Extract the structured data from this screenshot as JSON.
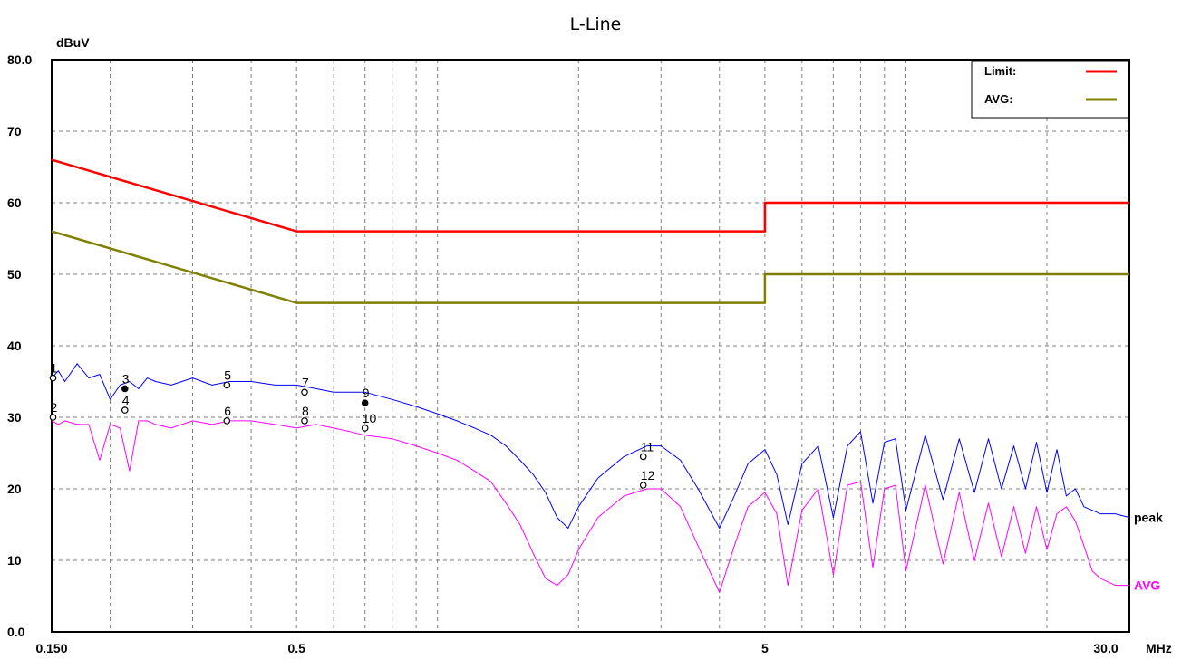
{
  "chart_data": {
    "type": "line",
    "title": "L-Line",
    "ylabel": "dBuV",
    "xlabel": "MHz",
    "xscale": "log",
    "xlim": [
      0.15,
      30
    ],
    "ylim": [
      0,
      80
    ],
    "grid": true,
    "y_ticks": [
      {
        "value": 80,
        "label": "80.0"
      },
      {
        "value": 70,
        "label": "70"
      },
      {
        "value": 60,
        "label": "60"
      },
      {
        "value": 50,
        "label": "50"
      },
      {
        "value": 40,
        "label": "40"
      },
      {
        "value": 30,
        "label": "30"
      },
      {
        "value": 20,
        "label": "20"
      },
      {
        "value": 10,
        "label": "10"
      },
      {
        "value": 0,
        "label": "0.0"
      }
    ],
    "x_ticks": [
      {
        "value": 0.15,
        "label": "0.150"
      },
      {
        "value": 0.5,
        "label": "0.5"
      },
      {
        "value": 5,
        "label": "5"
      },
      {
        "value": 30,
        "label": "30.0"
      }
    ],
    "legend": {
      "placement": "top-right",
      "items": [
        {
          "label": "Limit:",
          "color": "#ff0000"
        },
        {
          "label": "AVG:",
          "color": "#808000"
        }
      ]
    },
    "series": [
      {
        "name": "Limit:",
        "color": "#ff0000",
        "x": [
          0.15,
          0.5,
          5,
          5,
          30
        ],
        "y": [
          66,
          56,
          56,
          60,
          60
        ]
      },
      {
        "name": "AVG:",
        "color": "#808000",
        "x": [
          0.15,
          0.5,
          5,
          5,
          30
        ],
        "y": [
          56,
          46,
          46,
          50,
          50
        ]
      },
      {
        "name": "peak",
        "color": "#0000ff",
        "x": [
          0.15,
          0.155,
          0.16,
          0.17,
          0.18,
          0.19,
          0.2,
          0.21,
          0.22,
          0.23,
          0.24,
          0.25,
          0.27,
          0.3,
          0.33,
          0.36,
          0.4,
          0.45,
          0.5,
          0.55,
          0.6,
          0.65,
          0.7,
          0.8,
          0.9,
          1.0,
          1.1,
          1.2,
          1.3,
          1.4,
          1.5,
          1.6,
          1.7,
          1.8,
          1.9,
          2.0,
          2.2,
          2.5,
          2.8,
          3.0,
          3.3,
          3.6,
          4.0,
          4.3,
          4.6,
          5.0,
          5.3,
          5.6,
          6.0,
          6.5,
          7.0,
          7.5,
          8.0,
          8.5,
          9.0,
          9.5,
          10.0,
          11.0,
          12.0,
          13.0,
          14.0,
          15.0,
          16.0,
          17.0,
          18.0,
          19.0,
          20.0,
          21.0,
          22.0,
          23.0,
          24.0,
          25.0,
          26.0,
          28.0,
          30.0
        ],
        "y": [
          35.5,
          36.5,
          35.0,
          37.5,
          35.5,
          36.0,
          32.5,
          34.5,
          35.0,
          34.0,
          35.5,
          35.0,
          34.5,
          35.5,
          34.5,
          35.0,
          35.0,
          34.5,
          34.5,
          34.0,
          33.5,
          33.5,
          33.5,
          32.5,
          31.5,
          30.5,
          29.5,
          28.5,
          27.5,
          26.0,
          24.0,
          22.0,
          19.5,
          16.0,
          14.5,
          17.5,
          21.5,
          24.5,
          26.0,
          26.0,
          24.0,
          20.0,
          14.5,
          19.0,
          23.5,
          25.5,
          22.0,
          15.0,
          23.5,
          26.0,
          16.0,
          26.0,
          28.0,
          18.0,
          26.5,
          27.0,
          17.0,
          27.5,
          18.5,
          27.0,
          19.5,
          27.0,
          20.0,
          26.0,
          20.0,
          26.5,
          19.5,
          25.5,
          19.0,
          20.0,
          17.5,
          17.0,
          16.5,
          16.5,
          16.0
        ]
      },
      {
        "name": "AVG",
        "color": "#ff00ff",
        "x": [
          0.15,
          0.155,
          0.16,
          0.17,
          0.18,
          0.19,
          0.2,
          0.21,
          0.22,
          0.23,
          0.24,
          0.25,
          0.27,
          0.3,
          0.33,
          0.36,
          0.4,
          0.45,
          0.5,
          0.55,
          0.6,
          0.65,
          0.7,
          0.8,
          0.9,
          1.0,
          1.1,
          1.2,
          1.3,
          1.4,
          1.5,
          1.6,
          1.7,
          1.8,
          1.9,
          2.0,
          2.2,
          2.5,
          2.8,
          3.0,
          3.3,
          3.6,
          4.0,
          4.3,
          4.6,
          5.0,
          5.3,
          5.6,
          6.0,
          6.5,
          7.0,
          7.5,
          8.0,
          8.5,
          9.0,
          9.5,
          10.0,
          11.0,
          12.0,
          13.0,
          14.0,
          15.0,
          16.0,
          17.0,
          18.0,
          19.0,
          20.0,
          21.0,
          22.0,
          23.0,
          24.0,
          25.0,
          26.0,
          28.0,
          30.0
        ],
        "y": [
          29.5,
          29.0,
          29.5,
          29.0,
          29.0,
          24.0,
          29.0,
          28.5,
          22.5,
          29.5,
          29.5,
          29.0,
          28.5,
          29.5,
          29.0,
          29.5,
          29.5,
          29.0,
          28.5,
          29.0,
          28.5,
          28.0,
          27.5,
          27.0,
          26.0,
          25.0,
          24.0,
          22.5,
          21.0,
          18.0,
          15.0,
          11.0,
          7.5,
          6.5,
          8.0,
          11.5,
          16.0,
          19.0,
          20.0,
          20.0,
          17.5,
          12.0,
          5.5,
          12.0,
          17.5,
          19.5,
          16.5,
          6.5,
          17.0,
          20.0,
          8.0,
          20.5,
          21.0,
          9.0,
          20.0,
          20.5,
          8.5,
          20.5,
          9.5,
          19.5,
          10.0,
          18.0,
          10.5,
          17.5,
          11.0,
          17.5,
          11.5,
          16.5,
          17.5,
          15.5,
          12.0,
          8.5,
          7.5,
          6.5,
          6.5
        ]
      }
    ],
    "end_labels": [
      {
        "text": "peak",
        "series": "peak",
        "color": "#000000"
      },
      {
        "text": "AVG",
        "series": "AVG",
        "color": "#ff00ff"
      }
    ],
    "markers": [
      {
        "label": "1",
        "x": 0.151,
        "y": 35.5
      },
      {
        "label": "2",
        "x": 0.151,
        "y": 30.0
      },
      {
        "label": "3",
        "x": 0.215,
        "y": 34.0,
        "filled": true
      },
      {
        "label": "4",
        "x": 0.215,
        "y": 31.0
      },
      {
        "label": "5",
        "x": 0.355,
        "y": 34.5
      },
      {
        "label": "6",
        "x": 0.355,
        "y": 29.5
      },
      {
        "label": "7",
        "x": 0.52,
        "y": 33.5
      },
      {
        "label": "8",
        "x": 0.52,
        "y": 29.5
      },
      {
        "label": "9",
        "x": 0.7,
        "y": 32.0,
        "filled": true
      },
      {
        "label": "10",
        "x": 0.7,
        "y": 28.5
      },
      {
        "label": "11",
        "x": 2.75,
        "y": 24.5
      },
      {
        "label": "12",
        "x": 2.75,
        "y": 20.5
      }
    ]
  }
}
